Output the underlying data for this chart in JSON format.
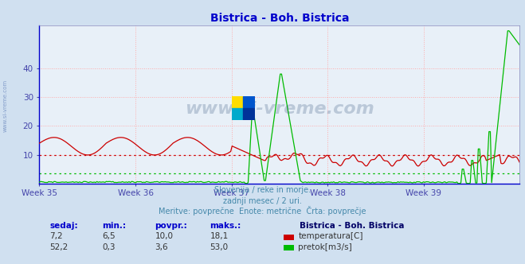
{
  "title": "Bistrica - Boh. Bistrica",
  "title_color": "#0000cc",
  "bg_color": "#d0e0f0",
  "plot_bg_color": "#e8f0f8",
  "grid_color": "#ffaaaa",
  "grid_style": ":",
  "x_labels": [
    "Week 35",
    "Week 36",
    "Week 37",
    "Week 38",
    "Week 39"
  ],
  "x_label_color": "#4444aa",
  "y_min": 0,
  "y_max": 55,
  "y_ticks": [
    10,
    20,
    30,
    40
  ],
  "temp_color": "#cc0000",
  "flow_color": "#00bb00",
  "avg_temp_color": "#cc0000",
  "avg_flow_color": "#00bb00",
  "avg_temp_value": 10.0,
  "avg_flow_value": 3.6,
  "n_points": 360,
  "subtitle1": "Slovenija / reke in morje.",
  "subtitle2": "zadnji mesec / 2 uri.",
  "subtitle3": "Meritve: povprečne  Enote: metrične  Črta: povprečje",
  "subtitle_color": "#4488aa",
  "table_headers": [
    "sedaj:",
    "min.:",
    "povpr.:",
    "maks.:"
  ],
  "table_header_color": "#0000cc",
  "row1": [
    "7,2",
    "6,5",
    "10,0",
    "18,1"
  ],
  "row2": [
    "52,2",
    "0,3",
    "3,6",
    "53,0"
  ],
  "row_color": "#333333",
  "legend_title": "Bistrica - Boh. Bistrica",
  "legend_title_color": "#000066",
  "legend_temp": "temperatura[C]",
  "legend_flow": "pretok[m3/s]",
  "watermark_text": "www.si-vreme.com",
  "watermark_color": "#1a3a6a",
  "watermark_alpha": 0.22,
  "side_text": "www.si-vreme.com",
  "side_text_color": "#4466aa",
  "side_text_alpha": 0.55,
  "logo_colors": [
    "#ffdd00",
    "#0055cc",
    "#00aacc",
    "#003399"
  ]
}
